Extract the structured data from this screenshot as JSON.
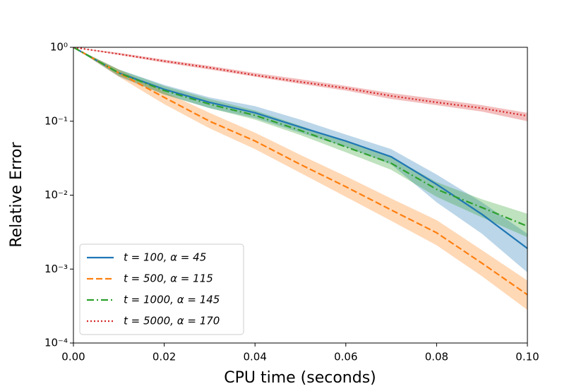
{
  "chart_data": {
    "type": "line",
    "xlabel": "CPU time (seconds)",
    "ylabel": "Relative Error",
    "x": [
      0,
      0.01,
      0.02,
      0.03,
      0.04,
      0.05,
      0.06,
      0.07,
      0.08,
      0.09,
      0.1
    ],
    "xlim": [
      0,
      0.1
    ],
    "xticks": [
      {
        "value": 0,
        "label": "0.00"
      },
      {
        "value": 0.02,
        "label": "0.02"
      },
      {
        "value": 0.04,
        "label": "0.04"
      },
      {
        "value": 0.06,
        "label": "0.06"
      },
      {
        "value": 0.08,
        "label": "0.08"
      },
      {
        "value": 0.1,
        "label": "0.10"
      }
    ],
    "ylim": [
      0.0001,
      1
    ],
    "yscale": "log",
    "yticks": [
      {
        "value": 1,
        "label": "10⁰"
      },
      {
        "value": 0.1,
        "label": "10⁻¹"
      },
      {
        "value": 0.01,
        "label": "10⁻²"
      },
      {
        "value": 0.001,
        "label": "10⁻³"
      },
      {
        "value": 0.0001,
        "label": "10⁻⁴"
      }
    ],
    "legend": "lower left",
    "series": [
      {
        "name": "t = 100, α = 45",
        "color": "#1f77b4",
        "linestyle": "solid",
        "values": [
          1,
          0.45,
          0.27,
          0.18,
          0.13,
          0.083,
          0.054,
          0.033,
          0.014,
          0.0055,
          0.0019
        ],
        "lower": [
          1,
          0.4,
          0.23,
          0.15,
          0.11,
          0.07,
          0.045,
          0.026,
          0.008,
          0.003,
          0.0009
        ],
        "upper": [
          1,
          0.5,
          0.31,
          0.21,
          0.16,
          0.105,
          0.066,
          0.042,
          0.019,
          0.008,
          0.003
        ]
      },
      {
        "name": "t = 500, α = 115",
        "color": "#ff7f0e",
        "linestyle": "dashed",
        "values": [
          1,
          0.45,
          0.21,
          0.1,
          0.054,
          0.026,
          0.013,
          0.0063,
          0.0031,
          0.0012,
          0.00045
        ],
        "lower": [
          1,
          0.4,
          0.17,
          0.08,
          0.042,
          0.02,
          0.0095,
          0.0045,
          0.0021,
          0.0008,
          0.00028
        ],
        "upper": [
          1,
          0.5,
          0.25,
          0.13,
          0.07,
          0.035,
          0.018,
          0.009,
          0.0046,
          0.0018,
          0.0007
        ]
      },
      {
        "name": "t = 1000, α = 145",
        "color": "#2ca02c",
        "linestyle": "dashdot",
        "values": [
          1,
          0.45,
          0.26,
          0.17,
          0.12,
          0.075,
          0.045,
          0.027,
          0.012,
          0.0068,
          0.0038
        ],
        "lower": [
          1,
          0.41,
          0.23,
          0.15,
          0.105,
          0.065,
          0.038,
          0.022,
          0.0095,
          0.005,
          0.0027
        ],
        "upper": [
          1,
          0.5,
          0.3,
          0.2,
          0.14,
          0.087,
          0.053,
          0.033,
          0.015,
          0.0088,
          0.0056
        ]
      },
      {
        "name": "t = 5000, α = 170",
        "color": "#d62728",
        "linestyle": "dotted",
        "values": [
          1,
          0.81,
          0.65,
          0.53,
          0.42,
          0.34,
          0.28,
          0.22,
          0.18,
          0.15,
          0.118
        ],
        "lower": [
          1,
          0.79,
          0.62,
          0.5,
          0.4,
          0.32,
          0.26,
          0.2,
          0.165,
          0.135,
          0.1
        ],
        "upper": [
          1,
          0.84,
          0.68,
          0.56,
          0.45,
          0.37,
          0.3,
          0.24,
          0.2,
          0.165,
          0.13
        ]
      }
    ]
  }
}
